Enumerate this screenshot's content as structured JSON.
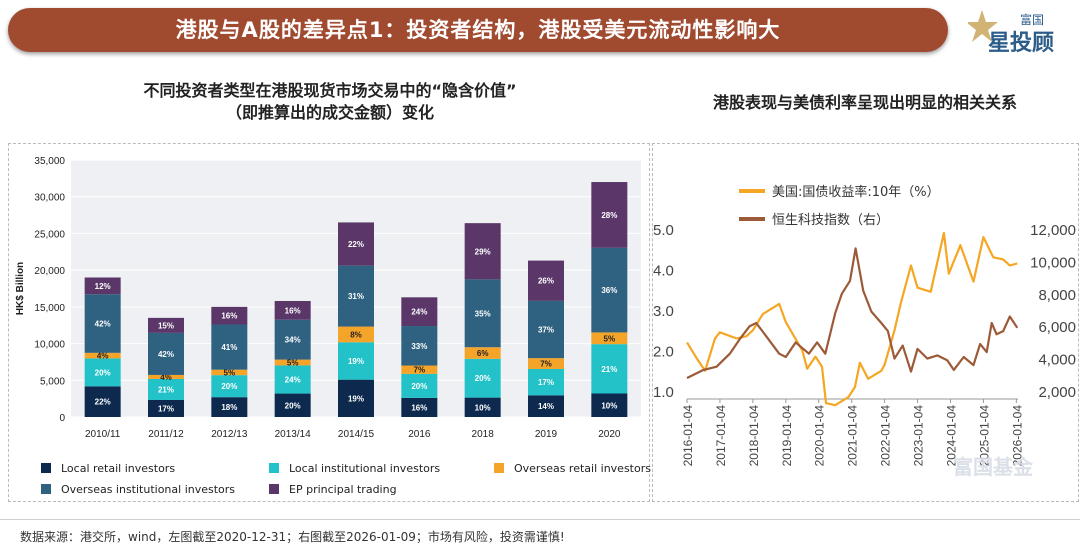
{
  "header": {
    "title": "港股与A股的差异点1：投资者结构，港股受美元流动性影响大",
    "logo_top": "富国",
    "logo_main": "星投顾"
  },
  "left_chart_title_line1": "不同投资者类型在港股现货市场交易中的“隐含价值”",
  "left_chart_title_line2": "（即推算出的成交金额）变化",
  "right_chart_title": "港股表现与美债利率呈现出明显的相关关系",
  "watermark": "富国基金",
  "footer": "数据来源：港交所，wind，左图截至2020-12-31；右图截至2026-01-09；市场有风险，投资需谨慎!",
  "chart_data": [
    {
      "type": "bar",
      "stacked": true,
      "title": "不同投资者类型在港股现货市场交易中的“隐含价值”（即推算出的成交金额）变化",
      "ylabel": "HK$ Billion",
      "ylim": [
        0,
        35000
      ],
      "yticks": [
        "0",
        "5,000",
        "10,000",
        "15,000",
        "20,000",
        "25,000",
        "30,000",
        "35,000"
      ],
      "categories": [
        "2010/11",
        "2011/12",
        "2012/13",
        "2013/14",
        "2014/15",
        "2016",
        "2018",
        "2019",
        "2020"
      ],
      "totals": [
        19000,
        13500,
        15000,
        15800,
        26500,
        16300,
        26400,
        21300,
        32000
      ],
      "series": [
        {
          "name": "Local retail investors",
          "color": "#0d2a4e",
          "percent": [
            22,
            17,
            18,
            20,
            19,
            16,
            10,
            14,
            10
          ]
        },
        {
          "name": "Local institutional investors",
          "color": "#23c2c9",
          "percent": [
            20,
            21,
            20,
            24,
            19,
            20,
            20,
            17,
            21
          ]
        },
        {
          "name": "Overseas retail investors",
          "color": "#f3a429",
          "percent": [
            4,
            4,
            5,
            5,
            8,
            7,
            6,
            7,
            5
          ]
        },
        {
          "name": "Overseas institutional investors",
          "color": "#2f6181",
          "percent": [
            42,
            42,
            41,
            34,
            31,
            33,
            35,
            37,
            36
          ]
        },
        {
          "name": "EP principal trading",
          "color": "#5a3768",
          "percent": [
            12,
            15,
            16,
            16,
            22,
            24,
            29,
            26,
            28
          ]
        }
      ],
      "labels": [
        [
          "22%",
          "17%",
          "18%",
          "20%",
          "19%",
          "16%",
          "10%",
          "14%",
          "10%"
        ],
        [
          "20%",
          "21%",
          "20%",
          "24%",
          "19%",
          "20%",
          "20%",
          "17%",
          "21%"
        ],
        [
          "4%",
          "4%",
          "5%",
          "5%",
          "8%",
          "7%",
          "6%",
          "7%",
          "5%"
        ],
        [
          "42%",
          "42%",
          "41%",
          "34%",
          "31%",
          "33%",
          "35%",
          "37%",
          "36%"
        ],
        [
          "12%",
          "15%",
          "16%",
          "16%",
          "22%",
          "24%",
          "29%",
          "26%",
          "28%"
        ]
      ],
      "legend": [
        "Local retail investors",
        "Local institutional investors",
        "Overseas retail investors",
        "Overseas institutional investors",
        "EP principal trading"
      ]
    },
    {
      "type": "line",
      "title": "港股表现与美债利率呈现出明显的相关关系",
      "left_axis": {
        "ylim": [
          1.0,
          5.0
        ],
        "ticks": [
          "1.0",
          "2.0",
          "3.0",
          "4.0",
          "5.0"
        ]
      },
      "right_axis": {
        "ylim": [
          2000,
          12000
        ],
        "ticks": [
          "2,000",
          "4,000",
          "6,000",
          "8,000",
          "10,000",
          "12,000"
        ]
      },
      "xlim": [
        2016.0,
        2026.05
      ],
      "xticks": [
        "2016-01-04",
        "2017-01-04",
        "2018-01-04",
        "2019-01-04",
        "2020-01-04",
        "2021-01-04",
        "2022-01-04",
        "2023-01-04",
        "2024-01-04",
        "2025-01-04",
        "2026-01-04"
      ],
      "series": [
        {
          "name": "美国:国债收益率:10年（%）",
          "axis": "left",
          "color": "#f5a623",
          "points": [
            [
              2016.0,
              2.2
            ],
            [
              2016.3,
              1.8
            ],
            [
              2016.55,
              1.5
            ],
            [
              2016.85,
              2.3
            ],
            [
              2017.0,
              2.45
            ],
            [
              2017.5,
              2.3
            ],
            [
              2017.8,
              2.35
            ],
            [
              2018.0,
              2.5
            ],
            [
              2018.3,
              2.9
            ],
            [
              2018.8,
              3.15
            ],
            [
              2019.0,
              2.7
            ],
            [
              2019.5,
              2.0
            ],
            [
              2019.65,
              1.55
            ],
            [
              2019.9,
              1.85
            ],
            [
              2020.1,
              1.6
            ],
            [
              2020.22,
              0.7
            ],
            [
              2020.5,
              0.65
            ],
            [
              2020.9,
              0.85
            ],
            [
              2021.1,
              1.1
            ],
            [
              2021.25,
              1.7
            ],
            [
              2021.5,
              1.3
            ],
            [
              2021.9,
              1.5
            ],
            [
              2022.0,
              1.65
            ],
            [
              2022.3,
              2.5
            ],
            [
              2022.5,
              3.2
            ],
            [
              2022.8,
              4.1
            ],
            [
              2023.0,
              3.55
            ],
            [
              2023.4,
              3.45
            ],
            [
              2023.8,
              4.9
            ],
            [
              2023.95,
              3.9
            ],
            [
              2024.3,
              4.6
            ],
            [
              2024.7,
              3.7
            ],
            [
              2025.0,
              4.8
            ],
            [
              2025.3,
              4.3
            ],
            [
              2025.6,
              4.25
            ],
            [
              2025.8,
              4.1
            ],
            [
              2026.03,
              4.15
            ]
          ]
        },
        {
          "name": "恒生科技指数（右）",
          "axis": "right",
          "color": "#9c5a38",
          "points": [
            [
              2016.0,
              2800
            ],
            [
              2016.2,
              3000
            ],
            [
              2016.5,
              3300
            ],
            [
              2016.9,
              3500
            ],
            [
              2017.3,
              4300
            ],
            [
              2017.6,
              5200
            ],
            [
              2017.9,
              6000
            ],
            [
              2018.1,
              6200
            ],
            [
              2018.4,
              5400
            ],
            [
              2018.8,
              4300
            ],
            [
              2019.0,
              4100
            ],
            [
              2019.3,
              5000
            ],
            [
              2019.7,
              4300
            ],
            [
              2019.95,
              5000
            ],
            [
              2020.2,
              4300
            ],
            [
              2020.5,
              6800
            ],
            [
              2020.7,
              8000
            ],
            [
              2020.95,
              8800
            ],
            [
              2021.12,
              10800
            ],
            [
              2021.35,
              8200
            ],
            [
              2021.6,
              6900
            ],
            [
              2021.9,
              6200
            ],
            [
              2022.1,
              5700
            ],
            [
              2022.3,
              4000
            ],
            [
              2022.55,
              4800
            ],
            [
              2022.8,
              3200
            ],
            [
              2023.0,
              4600
            ],
            [
              2023.3,
              4000
            ],
            [
              2023.6,
              4200
            ],
            [
              2023.9,
              3900
            ],
            [
              2024.1,
              3300
            ],
            [
              2024.4,
              4100
            ],
            [
              2024.7,
              3600
            ],
            [
              2024.9,
              4900
            ],
            [
              2025.1,
              4400
            ],
            [
              2025.25,
              6200
            ],
            [
              2025.4,
              5500
            ],
            [
              2025.6,
              5700
            ],
            [
              2025.8,
              6600
            ],
            [
              2026.03,
              5900
            ]
          ]
        }
      ]
    }
  ]
}
